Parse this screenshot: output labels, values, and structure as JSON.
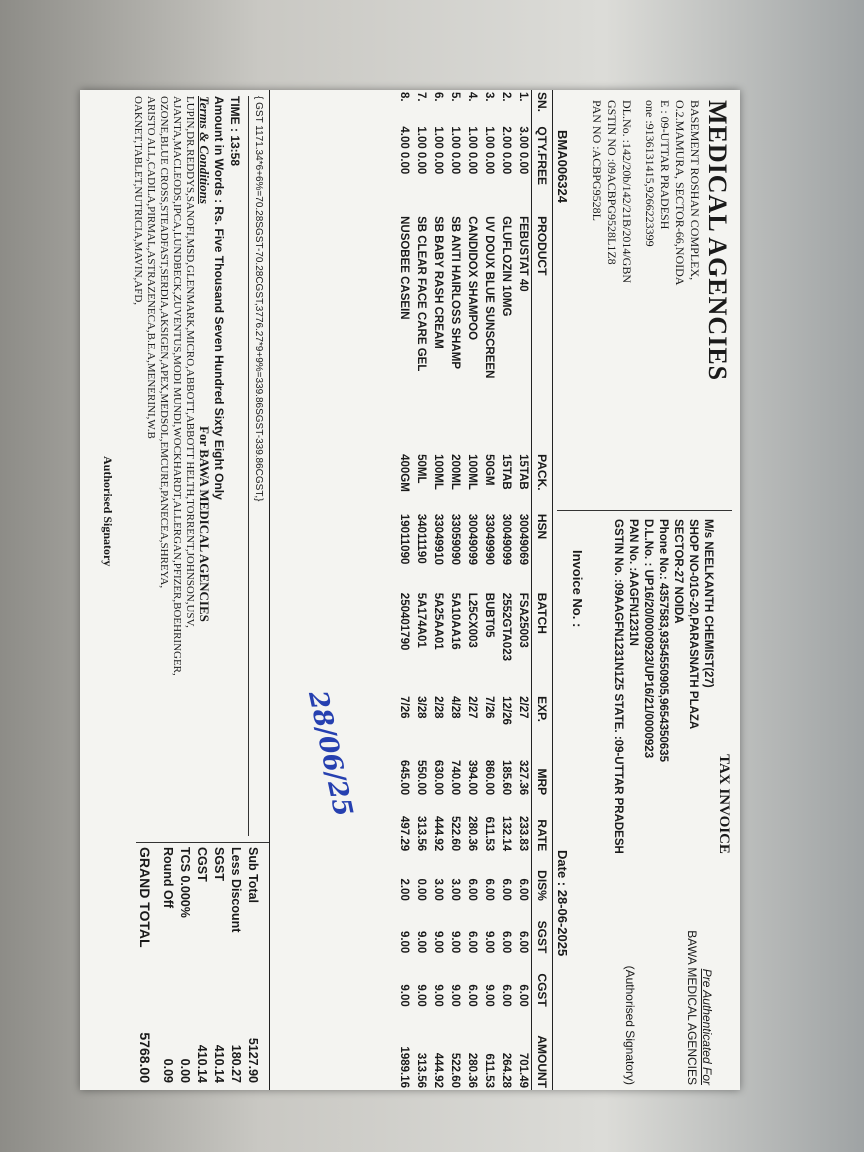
{
  "seller": {
    "name": "MEDICAL AGENCIES",
    "address": [
      "BASEMENT ROSHAN COMPLEX,",
      "O.2.MAMURA, SECTOR-66,NOIDA",
      "E : 09-UTTAR PRADESH",
      "one :9136131415,9266223399"
    ],
    "dl": "DL.No. :142/20b/142/21B/2014/GBN",
    "gstin": "GSTIN NO :09ACBPG9528L1Z8",
    "pan": "PAN NO :ACBPG9528L"
  },
  "invoice": {
    "title": "TAX INVOICE",
    "pre_auth": "Pre Authenticated For",
    "pre_auth_name": "BAWA MEDICAL AGENCIES",
    "signatory": "(Authorised Signatory)",
    "buyer": [
      "M/s NEELKANTH CHEMIST(27)",
      "SHOP NO-01G-20,PARASNATH PLAZA",
      "SECTOR-27 NOIDA",
      "Phone No.: 4357583,9354550905,9654350635",
      "D.L.No. :    UP16/20/0000923/UP16/21/0000923",
      "PAN No. :AAGFN1231N",
      "GSTIN No. :09AAGFN1231N1Z5   STATE. :09-UTTAR PRADESH"
    ],
    "invoice_no": "Invoice No. : BMA006324",
    "date": "Date : 28-06-2025"
  },
  "table": {
    "columns": [
      "SN.",
      "QTY.FREE",
      "PRODUCT",
      "PACK.",
      "HSN",
      "BATCH",
      "EXP.",
      "MRP",
      "RATE",
      "DIS%",
      "SGST",
      "CGST",
      "AMOUNT"
    ],
    "rows": [
      [
        "1.",
        "3.00 0.00",
        "FEBUSTAT 40",
        "15TAB",
        "30049069",
        "FSA25003",
        "2/27",
        "327.36",
        "233.83",
        "6.00",
        "6.00",
        "6.00",
        "701.49"
      ],
      [
        "2.",
        "2.00 0.00",
        "GLUFLOZIN 10MG",
        "15TAB",
        "30049099",
        "2552GTA023",
        "12/26",
        "185.60",
        "132.14",
        "6.00",
        "6.00",
        "6.00",
        "264.28"
      ],
      [
        "3.",
        "1.00 0.00",
        "UV DOUX BLUE SUNSCREEN",
        "50GM",
        "33049990",
        "BUBT05",
        "7/26",
        "860.00",
        "611.53",
        "6.00",
        "9.00",
        "9.00",
        "611.53"
      ],
      [
        "4.",
        "1.00 0.00",
        "CANDIDOX SHAMPOO",
        "100ML",
        "30049099",
        "L25CX003",
        "2/27",
        "394.00",
        "280.36",
        "6.00",
        "6.00",
        "6.00",
        "280.36"
      ],
      [
        "5.",
        "1.00 0.00",
        "SB ANTI HAIRLOSS SHAMP",
        "200ML",
        "33059090",
        "5A10AA16",
        "4/28",
        "740.00",
        "522.60",
        "3.00",
        "9.00",
        "9.00",
        "522.60"
      ],
      [
        "6.",
        "1.00 0.00",
        "SB BABY RASH CREAM",
        "100ML",
        "33049910",
        "5A25AA01",
        "2/28",
        "630.00",
        "444.92",
        "3.00",
        "9.00",
        "9.00",
        "444.92"
      ],
      [
        "7.",
        "1.00 0.00",
        "SB CLEAR FACE CARE GEL",
        "50ML",
        "34011190",
        "5A174A01",
        "3/28",
        "550.00",
        "313.56",
        "0.00",
        "9.00",
        "9.00",
        "313.56"
      ],
      [
        "8.",
        "4.00 0.00",
        "NUSOBEE CASEIN",
        "400GM",
        "19011090",
        "250401790",
        "7/26",
        "645.00",
        "497.29",
        "2.00",
        "9.00",
        "9.00",
        "1989.16"
      ]
    ]
  },
  "gst_note": "{ GST 1171.34*6+6%=70.28SGST-70.28CGST,3776.27*9+9%=339.86SGST-339.86CGST,}",
  "time": "TIME : 13:58",
  "amount_words": "Amount in Words : Rs. Five Thousand Seven Hundred Sixty Eight Only",
  "terms_title": "Terms & Conditions",
  "for_line": "For BAWA MEDICAL AGENCIES",
  "brands": [
    "LUPIN,DR.REDDYS,SANOFI,MSD,GLENMARK,MICRO,ABBOTT,ABBOTT HELTH,TORRENT,JOHNSON,USV,",
    "AJANTA,MACLEODS,IPCA,LUNDBECK,ZUVENTUS,MODI MUNDI,WOCKHARDT,ALLERGAN,PFIZER,BOEHRINGER,",
    "OZONE,BLUE CROSS,STEADFAST,SERDIA,AKSIGEN,APEX,MEDSOL,EMCURE,PANECEA,SHREYA,",
    "ARISTO ALL,CADILA,PIRMAL,ASTRAZENECA,B.E.A,MENERINI,W.B",
    "OAKNET,TABLET,NUTRICIA,MAVIN,AFD,"
  ],
  "authorised": "Authorised Signatory",
  "totals": {
    "labels": [
      "Sub Total",
      "Less Discount",
      "SGST",
      "CGST",
      "TCS 0.000%",
      "Round Off",
      "GRAND TOTAL"
    ],
    "values": [
      "5127.90",
      "180.27",
      "410.14",
      "410.14",
      "0.00",
      "0.09",
      "5768.00"
    ]
  },
  "handwritten": "28/06/25"
}
